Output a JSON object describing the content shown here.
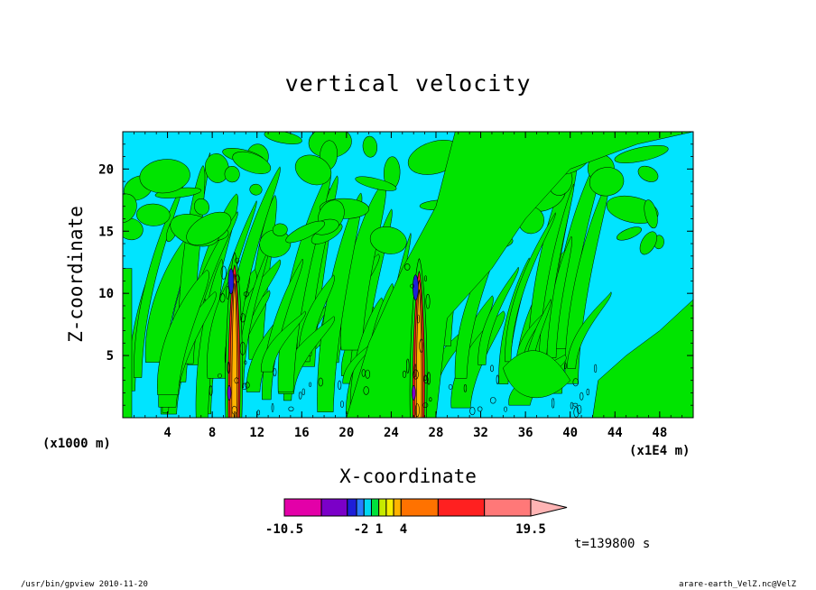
{
  "chart_data": {
    "type": "heatmap",
    "title": "vertical velocity",
    "xlabel": "X-coordinate",
    "ylabel": "Z-coordinate",
    "x_unit_left": "(x1000 m)",
    "x_unit_right": "(x1E4 m)",
    "x_ticks": [
      4,
      8,
      12,
      16,
      20,
      24,
      28,
      32,
      36,
      40,
      44,
      48
    ],
    "y_ticks": [
      5,
      10,
      15,
      20
    ],
    "xlim": [
      0,
      51
    ],
    "ylim": [
      0,
      23
    ],
    "colorbar": {
      "levels": [
        -10.5,
        -6,
        -2,
        1,
        4,
        10,
        15,
        19.5
      ],
      "tick_labels": [
        "-10.5",
        "-2",
        "1",
        "4",
        "19.5"
      ],
      "colors": [
        "#e300a8",
        "#7b00c8",
        "#1e1ed8",
        "#2a7cff",
        "#00d7f2",
        "#00e23c",
        "#c6ea00",
        "#f6ef00",
        "#ffb300",
        "#ff7200",
        "#ff2020",
        "#ff7878",
        "#ffb4b4"
      ],
      "background_color": "#00e4ff",
      "positive_color": "#00e400"
    },
    "time_label": "t=139800 s",
    "updraft_columns": [
      {
        "x": 10,
        "top_z": 13
      },
      {
        "x": 26.5,
        "top_z": 12.5
      }
    ]
  },
  "footer": {
    "left": "/usr/bin/gpview  2010-11-20",
    "right": "arare-earth_VelZ.nc@VelZ"
  }
}
